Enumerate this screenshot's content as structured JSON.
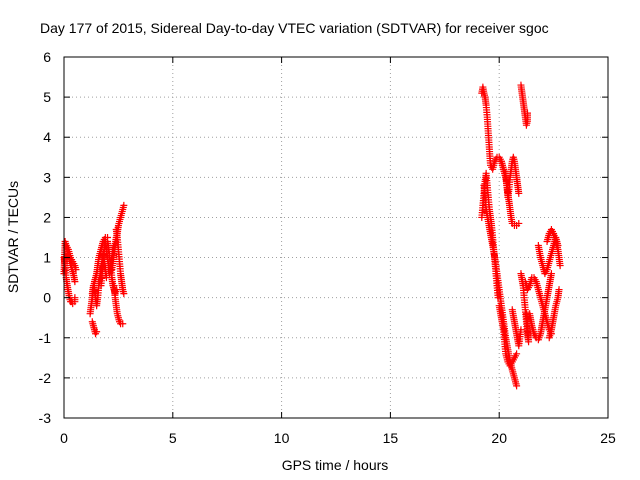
{
  "chart_data": {
    "type": "scatter",
    "title": "Day 177 of 2015, Sidereal Day-to-day VTEC variation (SDTVAR) for receiver sgoc",
    "xlabel": "GPS time / hours",
    "ylabel": "SDTVAR / TECUs",
    "xlim": [
      0,
      25
    ],
    "ylim": [
      -3,
      6
    ],
    "xticks": [
      0,
      5,
      10,
      15,
      20,
      25
    ],
    "yticks": [
      -3,
      -2,
      -1,
      0,
      1,
      2,
      3,
      4,
      5,
      6
    ],
    "xtick_labels": [
      "0",
      "5",
      "10",
      "15",
      "20",
      "25"
    ],
    "ytick_labels": [
      "-3",
      "-2",
      "-1",
      "0",
      "1",
      "2",
      "3",
      "4",
      "5",
      "6"
    ],
    "grid": true,
    "marker": "plus",
    "color": "#ff0000",
    "series": [
      {
        "segments": [
          [
            [
              0.0,
              0.6
            ],
            [
              0.05,
              1.4
            ],
            [
              0.1,
              1.3
            ],
            [
              0.15,
              1.2
            ],
            [
              0.2,
              1.05
            ],
            [
              0.25,
              0.95
            ],
            [
              0.3,
              0.85
            ],
            [
              0.35,
              0.75
            ],
            [
              0.4,
              0.65
            ],
            [
              0.45,
              0.55
            ],
            [
              0.5,
              0.4
            ]
          ],
          [
            [
              0.0,
              1.0
            ],
            [
              0.05,
              0.8
            ],
            [
              0.1,
              0.5
            ],
            [
              0.15,
              0.3
            ],
            [
              0.2,
              0.15
            ],
            [
              0.25,
              0.0
            ],
            [
              0.3,
              -0.1
            ],
            [
              0.35,
              -0.1
            ],
            [
              0.4,
              -0.15
            ],
            [
              0.5,
              -0.1
            ],
            [
              0.5,
              0.0
            ]
          ],
          [
            [
              0.1,
              1.3
            ],
            [
              0.2,
              1.2
            ],
            [
              0.3,
              1.0
            ],
            [
              0.4,
              0.9
            ],
            [
              0.5,
              0.8
            ],
            [
              0.55,
              0.7
            ]
          ],
          [
            [
              1.2,
              -0.4
            ],
            [
              1.25,
              -0.2
            ],
            [
              1.3,
              0.0
            ],
            [
              1.35,
              0.2
            ],
            [
              1.4,
              0.4
            ],
            [
              1.45,
              0.5
            ],
            [
              1.5,
              0.6
            ],
            [
              1.55,
              0.8
            ],
            [
              1.6,
              1.0
            ],
            [
              1.7,
              1.2
            ],
            [
              1.8,
              1.4
            ],
            [
              1.9,
              1.5
            ],
            [
              2.0,
              1.5
            ]
          ],
          [
            [
              1.3,
              -0.6
            ],
            [
              1.35,
              -0.7
            ],
            [
              1.4,
              -0.8
            ],
            [
              1.45,
              -0.9
            ],
            [
              1.5,
              -0.85
            ]
          ],
          [
            [
              1.3,
              0.1
            ],
            [
              1.35,
              0.3
            ],
            [
              1.4,
              0.2
            ],
            [
              1.45,
              0.0
            ],
            [
              1.5,
              -0.2
            ],
            [
              1.55,
              0.0
            ],
            [
              1.6,
              0.3
            ],
            [
              1.65,
              0.5
            ],
            [
              1.7,
              0.7
            ],
            [
              1.75,
              0.9
            ],
            [
              1.8,
              1.1
            ],
            [
              1.85,
              0.9
            ],
            [
              1.9,
              0.7
            ],
            [
              1.95,
              0.5
            ]
          ],
          [
            [
              1.7,
              0.3
            ],
            [
              1.75,
              0.6
            ],
            [
              1.8,
              0.9
            ],
            [
              1.85,
              1.2
            ],
            [
              1.9,
              1.4
            ],
            [
              1.95,
              1.2
            ],
            [
              2.0,
              1.0
            ],
            [
              2.05,
              0.8
            ],
            [
              2.1,
              0.6
            ],
            [
              2.15,
              0.8
            ],
            [
              2.2,
              1.0
            ],
            [
              2.25,
              1.2
            ],
            [
              2.3,
              1.3
            ]
          ],
          [
            [
              2.0,
              1.4
            ],
            [
              2.05,
              1.2
            ],
            [
              2.1,
              1.0
            ],
            [
              2.15,
              0.8
            ],
            [
              2.2,
              0.5
            ],
            [
              2.25,
              0.3
            ],
            [
              2.3,
              0.2
            ],
            [
              2.35,
              0.1
            ],
            [
              2.4,
              0.2
            ]
          ],
          [
            [
              2.2,
              0.7
            ],
            [
              2.25,
              0.9
            ],
            [
              2.3,
              1.1
            ],
            [
              2.35,
              1.3
            ],
            [
              2.4,
              1.5
            ],
            [
              2.45,
              1.6
            ],
            [
              2.5,
              1.8
            ],
            [
              2.55,
              1.9
            ],
            [
              2.6,
              2.0
            ],
            [
              2.65,
              2.1
            ],
            [
              2.7,
              2.2
            ],
            [
              2.75,
              2.3
            ]
          ],
          [
            [
              2.3,
              0.3
            ],
            [
              2.35,
              0.0
            ],
            [
              2.4,
              -0.2
            ],
            [
              2.45,
              -0.4
            ],
            [
              2.5,
              -0.5
            ],
            [
              2.55,
              -0.6
            ],
            [
              2.6,
              -0.65
            ],
            [
              2.7,
              -0.65
            ]
          ],
          [
            [
              2.4,
              1.7
            ],
            [
              2.45,
              1.5
            ],
            [
              2.5,
              1.2
            ],
            [
              2.55,
              0.9
            ],
            [
              2.6,
              0.6
            ],
            [
              2.65,
              0.4
            ],
            [
              2.7,
              0.2
            ],
            [
              2.75,
              0.1
            ]
          ]
        ]
      },
      {
        "segments": [
          [
            [
              19.2,
              5.1
            ],
            [
              19.25,
              5.25
            ],
            [
              19.3,
              5.1
            ],
            [
              19.35,
              5.0
            ],
            [
              19.4,
              4.8
            ],
            [
              19.45,
              4.5
            ],
            [
              19.5,
              4.1
            ],
            [
              19.55,
              3.7
            ],
            [
              19.6,
              3.3
            ],
            [
              19.7,
              3.2
            ],
            [
              19.8,
              3.4
            ],
            [
              19.9,
              3.5
            ],
            [
              20.0,
              3.5
            ],
            [
              20.1,
              3.4
            ],
            [
              20.2,
              3.2
            ],
            [
              20.3,
              3.0
            ]
          ],
          [
            [
              19.2,
              2.0
            ],
            [
              19.25,
              2.3
            ],
            [
              19.3,
              2.6
            ],
            [
              19.35,
              2.9
            ],
            [
              19.4,
              3.1
            ],
            [
              19.45,
              2.8
            ],
            [
              19.5,
              2.5
            ],
            [
              19.55,
              2.2
            ],
            [
              19.6,
              2.0
            ],
            [
              19.65,
              1.8
            ],
            [
              19.7,
              1.5
            ],
            [
              19.75,
              1.2
            ],
            [
              19.8,
              0.9
            ],
            [
              19.85,
              0.6
            ],
            [
              19.9,
              0.3
            ],
            [
              19.95,
              0.0
            ]
          ],
          [
            [
              19.3,
              2.8
            ],
            [
              19.35,
              2.5
            ],
            [
              19.4,
              2.2
            ],
            [
              19.5,
              1.9
            ],
            [
              19.6,
              1.6
            ],
            [
              19.7,
              1.3
            ],
            [
              19.8,
              1.0
            ],
            [
              19.9,
              0.6
            ],
            [
              20.0,
              0.2
            ],
            [
              20.1,
              -0.2
            ],
            [
              20.2,
              -0.6
            ],
            [
              20.3,
              -1.0
            ],
            [
              20.4,
              -1.3
            ],
            [
              20.5,
              -1.6
            ],
            [
              20.6,
              -1.8
            ],
            [
              20.7,
              -2.0
            ],
            [
              20.8,
              -2.2
            ]
          ],
          [
            [
              20.0,
              -0.2
            ],
            [
              20.1,
              -0.5
            ],
            [
              20.2,
              -0.8
            ],
            [
              20.25,
              -1.1
            ],
            [
              20.3,
              -1.4
            ],
            [
              20.4,
              -1.6
            ],
            [
              20.5,
              -1.7
            ],
            [
              20.6,
              -1.6
            ],
            [
              20.7,
              -1.5
            ],
            [
              20.8,
              -1.4
            ]
          ],
          [
            [
              20.1,
              3.4
            ],
            [
              20.2,
              3.2
            ],
            [
              20.3,
              3.0
            ],
            [
              20.35,
              2.8
            ],
            [
              20.4,
              2.6
            ],
            [
              20.45,
              2.4
            ],
            [
              20.5,
              2.2
            ],
            [
              20.55,
              2.0
            ],
            [
              20.6,
              1.85
            ],
            [
              20.7,
              1.8
            ],
            [
              20.8,
              1.8
            ],
            [
              20.9,
              1.85
            ]
          ],
          [
            [
              20.3,
              3.1
            ],
            [
              20.35,
              2.8
            ],
            [
              20.4,
              2.5
            ],
            [
              20.45,
              2.7
            ],
            [
              20.5,
              3.0
            ],
            [
              20.55,
              3.2
            ],
            [
              20.6,
              3.4
            ],
            [
              20.65,
              3.5
            ],
            [
              20.7,
              3.4
            ],
            [
              20.75,
              3.2
            ],
            [
              20.8,
              3.0
            ],
            [
              20.85,
              2.8
            ],
            [
              20.9,
              2.6
            ]
          ],
          [
            [
              20.6,
              -0.3
            ],
            [
              20.7,
              -0.6
            ],
            [
              20.8,
              -0.9
            ],
            [
              20.9,
              -1.2
            ],
            [
              21.0,
              -0.8
            ]
          ],
          [
            [
              21.0,
              5.3
            ],
            [
              21.05,
              5.1
            ],
            [
              21.1,
              4.9
            ],
            [
              21.15,
              4.7
            ],
            [
              21.2,
              4.5
            ],
            [
              21.25,
              4.3
            ],
            [
              21.3,
              4.4
            ],
            [
              21.3,
              4.6
            ]
          ],
          [
            [
              21.0,
              0.6
            ],
            [
              21.1,
              0.3
            ],
            [
              21.15,
              0.0
            ],
            [
              21.2,
              -0.3
            ],
            [
              21.25,
              -0.6
            ],
            [
              21.3,
              -0.9
            ],
            [
              21.35,
              -1.1
            ],
            [
              21.3,
              -0.7
            ],
            [
              21.25,
              -0.4
            ]
          ],
          [
            [
              21.2,
              0.4
            ],
            [
              21.3,
              0.2
            ],
            [
              21.4,
              0.3
            ],
            [
              21.5,
              0.5
            ],
            [
              21.6,
              0.5
            ],
            [
              21.7,
              0.4
            ],
            [
              21.8,
              0.2
            ],
            [
              21.9,
              0.0
            ],
            [
              22.0,
              -0.2
            ],
            [
              22.1,
              -0.4
            ],
            [
              22.2,
              -0.6
            ],
            [
              22.3,
              -0.8
            ],
            [
              22.4,
              -0.9
            ]
          ],
          [
            [
              21.4,
              -0.4
            ],
            [
              21.5,
              -0.7
            ],
            [
              21.6,
              -0.9
            ],
            [
              21.7,
              -1.0
            ],
            [
              21.8,
              -1.05
            ],
            [
              21.9,
              -0.9
            ],
            [
              22.0,
              -0.6
            ],
            [
              22.1,
              -0.3
            ],
            [
              22.2,
              0.0
            ],
            [
              22.3,
              0.3
            ],
            [
              22.4,
              0.6
            ]
          ],
          [
            [
              21.8,
              1.3
            ],
            [
              21.9,
              1.0
            ],
            [
              22.0,
              0.8
            ],
            [
              22.1,
              0.6
            ],
            [
              22.2,
              0.7
            ],
            [
              22.3,
              0.9
            ],
            [
              22.4,
              1.1
            ],
            [
              22.5,
              1.3
            ],
            [
              22.6,
              1.5
            ],
            [
              22.7,
              1.3
            ]
          ],
          [
            [
              22.2,
              1.4
            ],
            [
              22.3,
              1.6
            ],
            [
              22.4,
              1.7
            ],
            [
              22.5,
              1.6
            ],
            [
              22.6,
              1.4
            ],
            [
              22.7,
              1.2
            ],
            [
              22.75,
              1.0
            ],
            [
              22.8,
              0.8
            ]
          ],
          [
            [
              22.3,
              -1.0
            ],
            [
              22.4,
              -0.8
            ],
            [
              22.5,
              -0.5
            ],
            [
              22.6,
              -0.2
            ],
            [
              22.7,
              0.0
            ],
            [
              22.75,
              0.2
            ]
          ]
        ]
      }
    ]
  }
}
